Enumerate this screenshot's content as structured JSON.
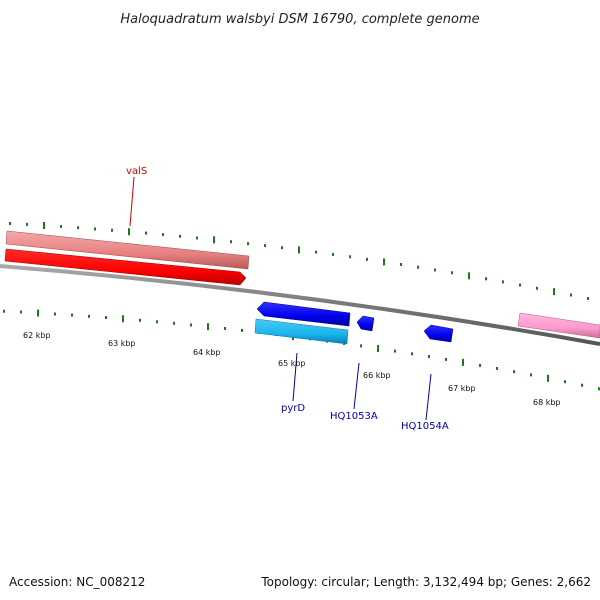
{
  "title": "Haloquadratum walsbyi DSM 16790, complete genome",
  "footer": {
    "accession": "Accession: NC_008212",
    "summary": "Topology: circular; Length: 3,132,494 bp; Genes: 2,662"
  },
  "scale_labels": [
    "62 kbp",
    "63 kbp",
    "64 kbp",
    "65 kbp",
    "66 kbp",
    "67 kbp",
    "68 kbp"
  ],
  "genes": [
    {
      "name": "valS",
      "strand": "forward",
      "color": "#dd0000"
    },
    {
      "name": "pyrD",
      "strand": "reverse",
      "color": "#0000aa"
    },
    {
      "name": "HQ1053A",
      "strand": "reverse",
      "color": "#0000aa"
    },
    {
      "name": "HQ1054A",
      "strand": "reverse",
      "color": "#0000aa"
    }
  ],
  "colors": {
    "backbone": "#777777",
    "forward_gene": "#ff0000",
    "forward_cds": "#e88080",
    "reverse_gene": "#0000ee",
    "reverse_cds": "#1ab4ee",
    "other_feature": "#ff99cc",
    "tick": "#1a7a1a"
  }
}
